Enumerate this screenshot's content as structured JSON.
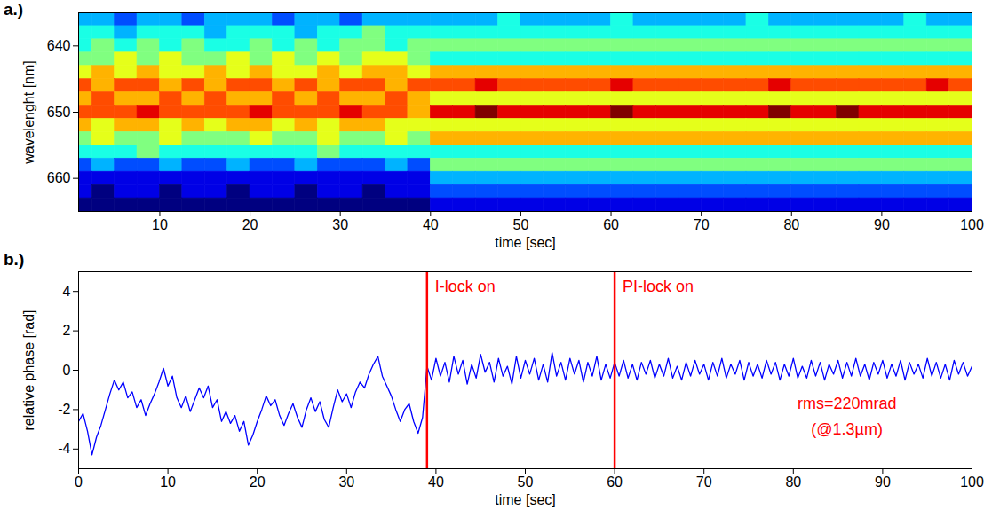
{
  "chart_data": [
    {
      "type": "heatmap",
      "panel": "a.)",
      "xlabel": "time [sec]",
      "ylabel": "wavelenght [nm]",
      "color": "jet",
      "xlim": [
        1,
        100
      ],
      "xticks": [
        10,
        20,
        30,
        40,
        50,
        60,
        70,
        80,
        90,
        100
      ],
      "ylim": [
        665,
        635
      ],
      "yticks": [
        640,
        650,
        660
      ],
      "x": [
        1.25,
        3.75,
        6.25,
        8.75,
        11.25,
        13.75,
        16.25,
        18.75,
        21.25,
        23.75,
        26.25,
        28.75,
        31.25,
        33.75,
        36.25,
        38.75,
        41.25,
        43.75,
        46.25,
        48.75,
        51.25,
        53.75,
        56.25,
        58.75,
        61.25,
        63.75,
        66.25,
        68.75,
        71.25,
        73.75,
        76.25,
        78.75,
        81.25,
        83.75,
        86.25,
        88.75,
        91.25,
        93.75,
        96.25,
        98.75
      ],
      "y": [
        636,
        638,
        640,
        642,
        644,
        646,
        648,
        650,
        652,
        654,
        656,
        658,
        660,
        662,
        664
      ],
      "cells": [
        [
          3,
          3,
          2,
          3,
          3,
          2,
          3,
          3,
          3,
          2,
          3,
          3,
          2,
          3,
          3,
          3,
          3,
          3,
          3,
          4,
          3,
          3,
          3,
          3,
          4,
          3,
          3,
          3,
          3,
          3,
          4,
          3,
          3,
          3,
          3,
          3,
          3,
          4,
          3,
          3
        ],
        [
          4,
          4,
          3,
          4,
          4,
          4,
          3,
          4,
          4,
          4,
          3,
          4,
          4,
          5,
          4,
          4,
          4,
          4,
          4,
          4,
          4,
          4,
          4,
          4,
          4,
          4,
          4,
          4,
          4,
          4,
          4,
          4,
          4,
          4,
          4,
          4,
          4,
          4,
          4,
          4
        ],
        [
          4,
          5,
          4,
          5,
          4,
          5,
          4,
          4,
          5,
          4,
          5,
          4,
          5,
          5,
          4,
          5,
          5,
          5,
          5,
          5,
          5,
          5,
          5,
          5,
          5,
          5,
          5,
          5,
          5,
          5,
          5,
          5,
          5,
          5,
          5,
          5,
          5,
          5,
          5,
          5
        ],
        [
          5,
          5,
          6,
          5,
          6,
          5,
          5,
          6,
          5,
          6,
          5,
          6,
          5,
          6,
          6,
          5,
          4,
          4,
          4,
          4,
          4,
          4,
          4,
          4,
          4,
          4,
          4,
          4,
          4,
          4,
          4,
          4,
          4,
          4,
          4,
          4,
          4,
          4,
          4,
          4
        ],
        [
          6,
          7,
          6,
          7,
          6,
          6,
          7,
          6,
          7,
          6,
          6,
          7,
          6,
          7,
          7,
          6,
          7,
          7,
          7,
          7,
          7,
          7,
          7,
          7,
          7,
          7,
          7,
          7,
          7,
          7,
          7,
          7,
          7,
          7,
          7,
          7,
          7,
          7,
          7,
          7
        ],
        [
          8,
          7,
          8,
          8,
          7,
          8,
          7,
          8,
          8,
          7,
          8,
          7,
          8,
          8,
          7,
          8,
          8,
          8,
          9,
          8,
          8,
          8,
          8,
          8,
          9,
          8,
          8,
          8,
          8,
          8,
          8,
          9,
          8,
          8,
          8,
          8,
          8,
          8,
          9,
          8
        ],
        [
          7,
          8,
          7,
          7,
          8,
          7,
          8,
          7,
          7,
          8,
          7,
          8,
          7,
          7,
          8,
          7,
          6,
          6,
          6,
          6,
          6,
          6,
          6,
          6,
          6,
          6,
          6,
          6,
          6,
          6,
          6,
          6,
          6,
          6,
          6,
          6,
          6,
          6,
          6,
          6
        ],
        [
          8,
          8,
          8,
          9,
          8,
          8,
          8,
          8,
          9,
          8,
          8,
          8,
          9,
          8,
          8,
          7,
          9,
          9,
          10,
          9,
          9,
          9,
          9,
          9,
          10,
          9,
          9,
          9,
          9,
          9,
          9,
          10,
          9,
          9,
          10,
          9,
          9,
          9,
          9,
          9
        ],
        [
          7,
          6,
          7,
          7,
          6,
          7,
          6,
          7,
          7,
          6,
          7,
          6,
          7,
          7,
          6,
          6,
          6,
          6,
          6,
          6,
          6,
          6,
          6,
          6,
          6,
          6,
          6,
          6,
          6,
          6,
          6,
          6,
          6,
          6,
          6,
          6,
          6,
          6,
          6,
          6
        ],
        [
          5,
          6,
          5,
          5,
          6,
          5,
          5,
          5,
          6,
          5,
          5,
          6,
          5,
          5,
          6,
          5,
          7,
          7,
          7,
          7,
          7,
          7,
          7,
          7,
          7,
          7,
          7,
          7,
          7,
          7,
          7,
          7,
          7,
          7,
          7,
          7,
          7,
          7,
          7,
          7
        ],
        [
          4,
          4,
          4,
          5,
          4,
          4,
          4,
          4,
          4,
          4,
          4,
          5,
          4,
          4,
          4,
          4,
          4,
          4,
          4,
          4,
          4,
          4,
          4,
          4,
          4,
          4,
          4,
          4,
          4,
          4,
          4,
          4,
          4,
          4,
          4,
          4,
          4,
          4,
          4,
          4
        ],
        [
          2,
          3,
          2,
          2,
          3,
          2,
          2,
          3,
          2,
          2,
          3,
          2,
          2,
          2,
          3,
          2,
          5,
          5,
          5,
          5,
          5,
          5,
          5,
          5,
          5,
          5,
          5,
          5,
          5,
          5,
          5,
          5,
          5,
          5,
          5,
          5,
          5,
          5,
          5,
          5
        ],
        [
          1,
          1,
          1,
          1,
          1,
          1,
          1,
          1,
          1,
          1,
          1,
          1,
          1,
          1,
          1,
          1,
          3,
          3,
          3,
          3,
          3,
          3,
          3,
          3,
          3,
          3,
          3,
          3,
          3,
          3,
          3,
          3,
          3,
          3,
          3,
          3,
          3,
          3,
          3,
          3
        ],
        [
          1,
          0,
          1,
          1,
          0,
          1,
          1,
          0,
          1,
          1,
          0,
          1,
          1,
          0,
          1,
          1,
          2,
          2,
          2,
          2,
          2,
          2,
          2,
          2,
          2,
          2,
          2,
          2,
          2,
          2,
          2,
          2,
          2,
          2,
          2,
          2,
          2,
          2,
          2,
          2
        ],
        [
          0,
          0,
          0,
          0,
          0,
          0,
          0,
          0,
          0,
          0,
          0,
          0,
          0,
          0,
          0,
          0,
          1,
          1,
          1,
          1,
          1,
          1,
          1,
          1,
          1,
          1,
          1,
          1,
          1,
          1,
          1,
          1,
          1,
          1,
          1,
          1,
          1,
          1,
          1,
          1
        ]
      ]
    },
    {
      "type": "line",
      "panel": "b.)",
      "xlabel": "time [sec]",
      "ylabel": "relative phase [rad]",
      "xlim": [
        0,
        100
      ],
      "xticks": [
        0,
        10,
        20,
        30,
        40,
        50,
        60,
        70,
        80,
        90,
        100
      ],
      "ylim": [
        -5,
        5
      ],
      "yticks": [
        -4,
        -2,
        0,
        2,
        4
      ],
      "x": [
        0,
        0.5,
        1,
        1.5,
        2,
        2.5,
        3,
        3.5,
        4,
        4.5,
        5,
        5.5,
        6,
        6.5,
        7,
        7.5,
        8,
        8.5,
        9,
        9.5,
        10,
        10.5,
        11,
        11.5,
        12,
        12.5,
        13,
        13.5,
        14,
        14.5,
        15,
        15.5,
        16,
        16.5,
        17,
        17.5,
        18,
        18.5,
        19,
        19.5,
        20,
        20.5,
        21,
        21.5,
        22,
        22.5,
        23,
        23.5,
        24,
        24.5,
        25,
        25.5,
        26,
        26.5,
        27,
        27.5,
        28,
        28.5,
        29,
        29.5,
        30,
        30.5,
        31,
        31.5,
        32,
        32.5,
        33,
        33.5,
        34,
        34.5,
        35,
        35.5,
        36,
        36.5,
        37,
        37.5,
        38,
        38.5,
        39,
        39.5,
        40,
        40.5,
        41,
        41.5,
        42,
        42.5,
        43,
        43.5,
        44,
        44.5,
        45,
        45.5,
        46,
        46.5,
        47,
        47.5,
        48,
        48.5,
        49,
        49.5,
        50,
        50.5,
        51,
        51.5,
        52,
        52.5,
        53,
        53.5,
        54,
        54.5,
        55,
        55.5,
        56,
        56.5,
        57,
        57.5,
        58,
        58.5,
        59,
        59.5,
        60,
        60.5,
        61,
        61.5,
        62,
        62.5,
        63,
        63.5,
        64,
        64.5,
        65,
        65.5,
        66,
        66.5,
        67,
        67.5,
        68,
        68.5,
        69,
        69.5,
        70,
        70.5,
        71,
        71.5,
        72,
        72.5,
        73,
        73.5,
        74,
        74.5,
        75,
        75.5,
        76,
        76.5,
        77,
        77.5,
        78,
        78.5,
        79,
        79.5,
        80,
        80.5,
        81,
        81.5,
        82,
        82.5,
        83,
        83.5,
        84,
        84.5,
        85,
        85.5,
        86,
        86.5,
        87,
        87.5,
        88,
        88.5,
        89,
        89.5,
        90,
        90.5,
        91,
        91.5,
        92,
        92.5,
        93,
        93.5,
        94,
        94.5,
        95,
        95.5,
        96,
        96.5,
        97,
        97.5,
        98,
        98.5,
        99,
        99.5,
        100
      ],
      "series": [
        {
          "color": "#0000ff",
          "values": [
            -2.6,
            -2.2,
            -3.1,
            -4.3,
            -3.4,
            -2.8,
            -2.0,
            -1.2,
            -0.5,
            -1.0,
            -0.6,
            -1.4,
            -1.1,
            -1.9,
            -1.5,
            -2.3,
            -1.7,
            -1.2,
            -0.6,
            0.1,
            -0.8,
            -0.3,
            -1.4,
            -1.9,
            -1.3,
            -2.1,
            -1.5,
            -0.9,
            -1.4,
            -0.8,
            -1.9,
            -1.5,
            -2.6,
            -2.1,
            -2.7,
            -2.3,
            -3.1,
            -2.6,
            -3.8,
            -3.3,
            -2.6,
            -2.0,
            -1.3,
            -1.8,
            -1.5,
            -2.3,
            -2.8,
            -2.2,
            -1.7,
            -2.4,
            -2.9,
            -2.0,
            -1.4,
            -2.1,
            -1.6,
            -2.5,
            -2.9,
            -1.9,
            -1.0,
            -1.6,
            -1.2,
            -1.9,
            -1.1,
            -0.6,
            -0.9,
            -0.2,
            0.3,
            0.7,
            -0.3,
            -0.8,
            -1.3,
            -2.0,
            -2.6,
            -2.0,
            -1.7,
            -2.6,
            -3.2,
            -2.4,
            0.2,
            -0.5,
            0.6,
            -0.3,
            0.4,
            -0.6,
            0.7,
            -0.2,
            0.5,
            -0.7,
            0.3,
            -0.4,
            0.8,
            -0.1,
            0.4,
            -0.6,
            0.6,
            -0.3,
            0.2,
            -0.7,
            0.7,
            -0.4,
            0.5,
            -0.2,
            0.6,
            -0.5,
            0.3,
            -0.6,
            0.9,
            -0.3,
            0.4,
            -0.5,
            0.6,
            -0.2,
            0.5,
            -0.6,
            0.4,
            -0.3,
            0.7,
            -0.5,
            0.3,
            -0.4,
            0.4,
            -0.3,
            0.5,
            -0.4,
            0.3,
            -0.5,
            0.4,
            -0.2,
            0.5,
            -0.4,
            0.3,
            -0.3,
            0.6,
            -0.4,
            0.2,
            -0.5,
            0.4,
            -0.3,
            0.5,
            -0.2,
            0.3,
            -0.5,
            0.4,
            -0.3,
            0.6,
            -0.4,
            0.3,
            -0.2,
            0.5,
            -0.5,
            0.4,
            -0.3,
            0.3,
            -0.4,
            0.5,
            -0.2,
            0.4,
            -0.5,
            0.3,
            -0.3,
            0.6,
            -0.4,
            0.2,
            -0.4,
            0.5,
            -0.3,
            0.4,
            -0.5,
            0.3,
            -0.2,
            0.5,
            -0.4,
            0.4,
            -0.3,
            0.6,
            -0.3,
            0.3,
            -0.5,
            0.4,
            -0.2,
            0.5,
            -0.4,
            0.3,
            -0.3,
            0.5,
            -0.5,
            0.4,
            -0.2,
            0.3,
            -0.4,
            0.6,
            -0.3,
            0.4,
            -0.4,
            0.3,
            -0.5,
            0.5,
            -0.2,
            0.4,
            -0.3,
            0.2
          ]
        }
      ],
      "markers": [
        {
          "x": 39,
          "label": "I-lock on",
          "color": "red"
        },
        {
          "x": 60,
          "label": "PI-lock on",
          "color": "red"
        }
      ],
      "annotations": [
        {
          "text": "rms=220mrad",
          "x": 86,
          "y": -1.7,
          "color": "red"
        },
        {
          "text": "(@1.3µm)",
          "x": 86,
          "y": -3.0,
          "color": "red"
        }
      ]
    }
  ]
}
